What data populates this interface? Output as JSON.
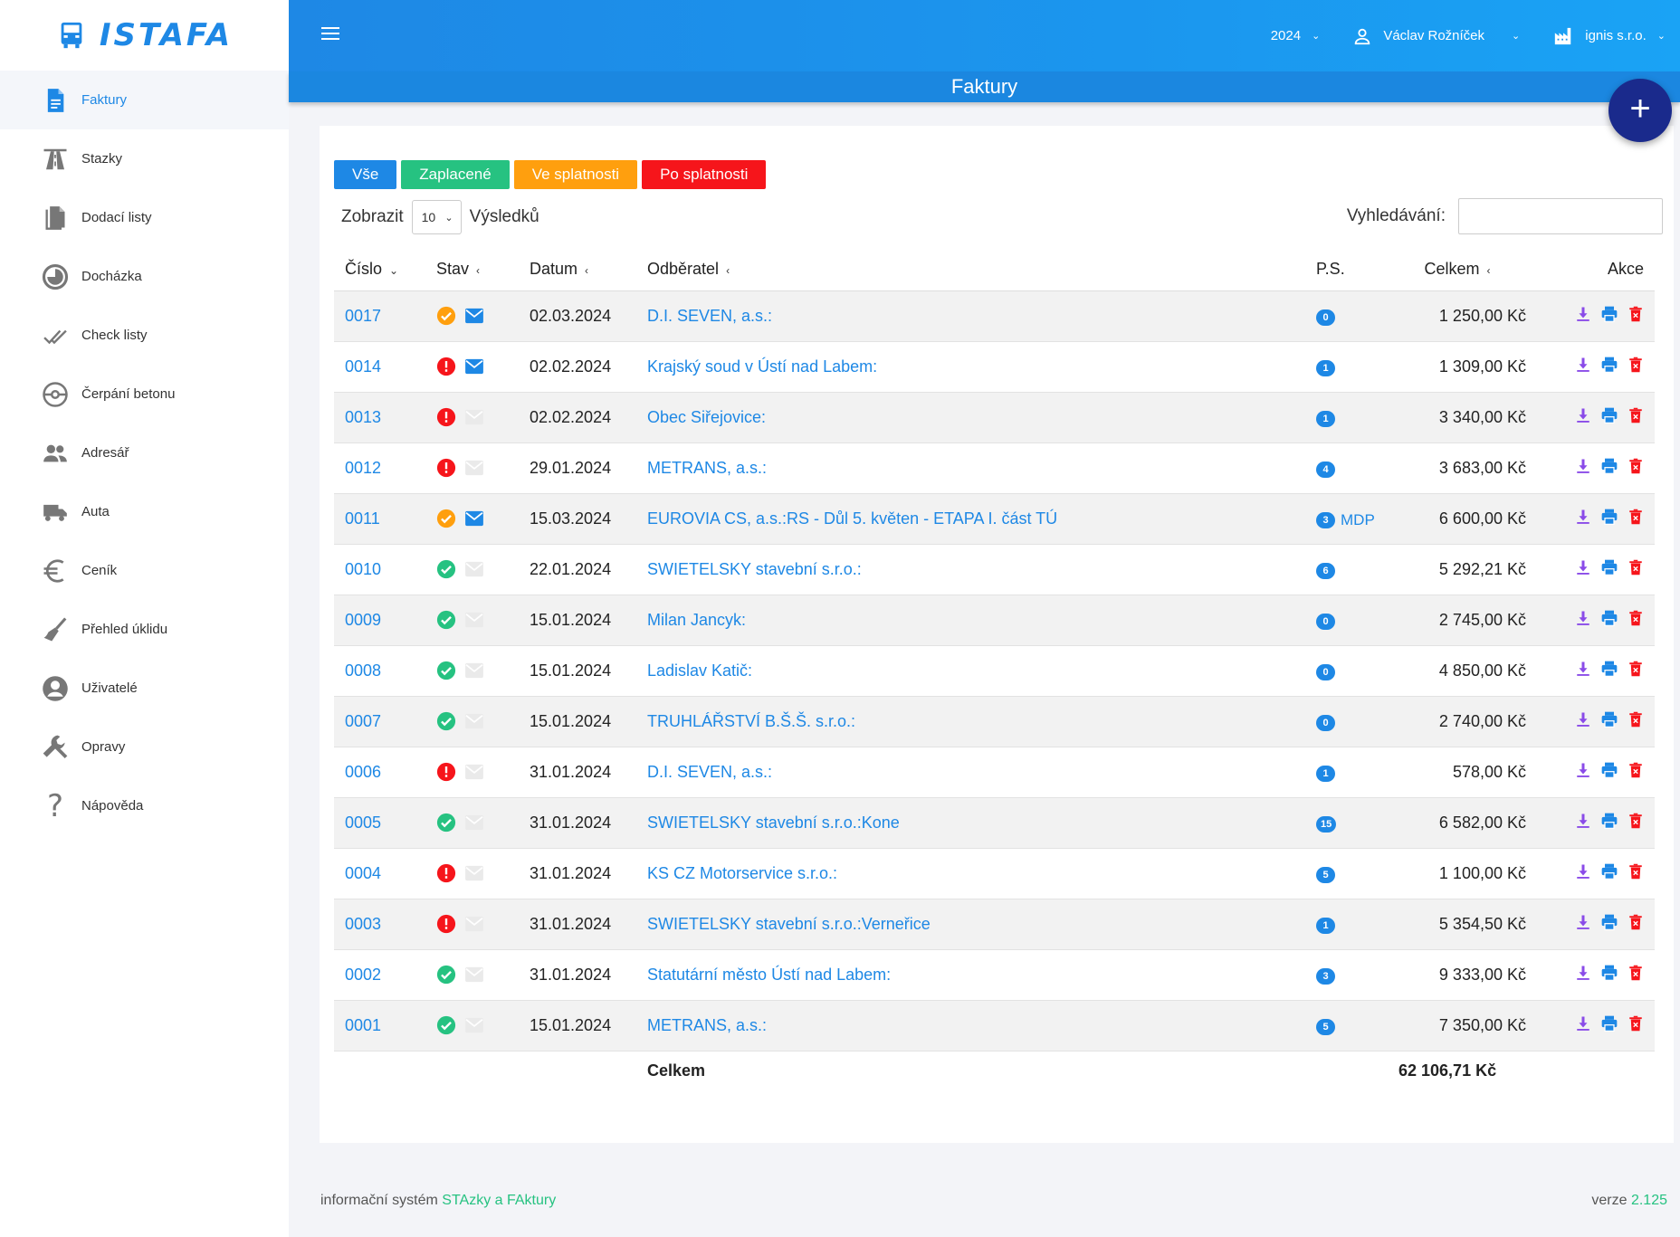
{
  "app": {
    "logo_text": "ISTAFA"
  },
  "sidebar": {
    "items": [
      {
        "label": "Faktury",
        "icon": "document-icon"
      },
      {
        "label": "Stazky",
        "icon": "road-icon"
      },
      {
        "label": "Dodací listy",
        "icon": "files-icon"
      },
      {
        "label": "Docházka",
        "icon": "clock-icon"
      },
      {
        "label": "Check listy",
        "icon": "double-check-icon"
      },
      {
        "label": "Čerpání betonu",
        "icon": "pump-icon"
      },
      {
        "label": "Adresář",
        "icon": "people-icon"
      },
      {
        "label": "Auta",
        "icon": "truck-icon"
      },
      {
        "label": "Ceník",
        "icon": "euro-icon"
      },
      {
        "label": "Přehled úklidu",
        "icon": "broom-icon"
      },
      {
        "label": "Uživatelé",
        "icon": "user-circle-icon"
      },
      {
        "label": "Opravy",
        "icon": "wrench-icon"
      },
      {
        "label": "Nápověda",
        "icon": "question-icon"
      }
    ]
  },
  "header": {
    "year": "2024",
    "user": "Václav Rožníček",
    "company": "ignis s.r.o.",
    "page_title": "Faktury",
    "add_label": "+"
  },
  "filters": {
    "all": "Vše",
    "paid": "Zaplacené",
    "due": "Ve splatnosti",
    "overdue": "Po splatnosti"
  },
  "list_controls": {
    "show_label": "Zobrazit",
    "page_size": "10",
    "results_label": "Výsledků",
    "search_label": "Vyhledávání:",
    "search_value": ""
  },
  "table": {
    "columns": {
      "number": "Číslo",
      "status": "Stav",
      "date": "Datum",
      "customer": "Odběratel",
      "ps": "P.S.",
      "total": "Celkem",
      "actions": "Akce"
    },
    "rows": [
      {
        "number": "0017",
        "status": "due",
        "sent": true,
        "date": "02.03.2024",
        "customer": "D.I. SEVEN, a.s.:",
        "ps": "0",
        "ps_note": "",
        "total": "1 250,00 Kč"
      },
      {
        "number": "0014",
        "status": "overdue",
        "sent": true,
        "date": "02.02.2024",
        "customer": "Krajský soud v Ústí nad Labem:",
        "ps": "1",
        "ps_note": "",
        "total": "1 309,00 Kč"
      },
      {
        "number": "0013",
        "status": "overdue",
        "sent": false,
        "date": "02.02.2024",
        "customer": "Obec Siřejovice:",
        "ps": "1",
        "ps_note": "",
        "total": "3 340,00 Kč"
      },
      {
        "number": "0012",
        "status": "overdue",
        "sent": false,
        "date": "29.01.2024",
        "customer": "METRANS, a.s.:",
        "ps": "4",
        "ps_note": "",
        "total": "3 683,00 Kč"
      },
      {
        "number": "0011",
        "status": "due",
        "sent": true,
        "date": "15.03.2024",
        "customer": "EUROVIA CS, a.s.:RS - Důl 5. květen - ETAPA I. část TÚ",
        "ps": "3",
        "ps_note": "MDP",
        "total": "6 600,00 Kč"
      },
      {
        "number": "0010",
        "status": "paid",
        "sent": false,
        "date": "22.01.2024",
        "customer": "SWIETELSKY stavební s.r.o.:",
        "ps": "6",
        "ps_note": "",
        "total": "5 292,21 Kč"
      },
      {
        "number": "0009",
        "status": "paid",
        "sent": false,
        "date": "15.01.2024",
        "customer": "Milan Jancyk:",
        "ps": "0",
        "ps_note": "",
        "total": "2 745,00 Kč"
      },
      {
        "number": "0008",
        "status": "paid",
        "sent": false,
        "date": "15.01.2024",
        "customer": "Ladislav Katič:",
        "ps": "0",
        "ps_note": "",
        "total": "4 850,00 Kč"
      },
      {
        "number": "0007",
        "status": "paid",
        "sent": false,
        "date": "15.01.2024",
        "customer": "TRUHLÁŘSTVÍ  B.Š.Š. s.r.o.:",
        "ps": "0",
        "ps_note": "",
        "total": "2 740,00 Kč"
      },
      {
        "number": "0006",
        "status": "overdue",
        "sent": false,
        "date": "31.01.2024",
        "customer": "D.I. SEVEN, a.s.:",
        "ps": "1",
        "ps_note": "",
        "total": "578,00 Kč"
      },
      {
        "number": "0005",
        "status": "paid",
        "sent": false,
        "date": "31.01.2024",
        "customer": "SWIETELSKY stavební s.r.o.:Kone",
        "ps": "15",
        "ps_note": "",
        "total": "6 582,00 Kč"
      },
      {
        "number": "0004",
        "status": "overdue",
        "sent": false,
        "date": "31.01.2024",
        "customer": "KS CZ Motorservice s.r.o.:",
        "ps": "5",
        "ps_note": "",
        "total": "1 100,00 Kč"
      },
      {
        "number": "0003",
        "status": "overdue",
        "sent": false,
        "date": "31.01.2024",
        "customer": "SWIETELSKY stavební s.r.o.:Verneřice",
        "ps": "1",
        "ps_note": "",
        "total": "5 354,50 Kč"
      },
      {
        "number": "0002",
        "status": "paid",
        "sent": false,
        "date": "31.01.2024",
        "customer": "Statutární město Ústí nad Labem:",
        "ps": "3",
        "ps_note": "",
        "total": "9 333,00 Kč"
      },
      {
        "number": "0001",
        "status": "paid",
        "sent": false,
        "date": "15.01.2024",
        "customer": "METRANS, a.s.:",
        "ps": "5",
        "ps_note": "",
        "total": "7 350,00 Kč"
      }
    ],
    "footer": {
      "label": "Celkem",
      "total": "62 106,71 Kč"
    }
  },
  "footer": {
    "prefix": "informační systém ",
    "brand": "STAzky a FAktury",
    "version_label": "verze ",
    "version": "2.125"
  },
  "colors": {
    "primary": "#1e88e5",
    "paid": "#26c281",
    "due": "#ff9f0e",
    "overdue": "#f6151b",
    "download": "#8a4be8",
    "print": "#1e88e5",
    "delete": "#f6151b",
    "fab": "#1a2a8c"
  }
}
